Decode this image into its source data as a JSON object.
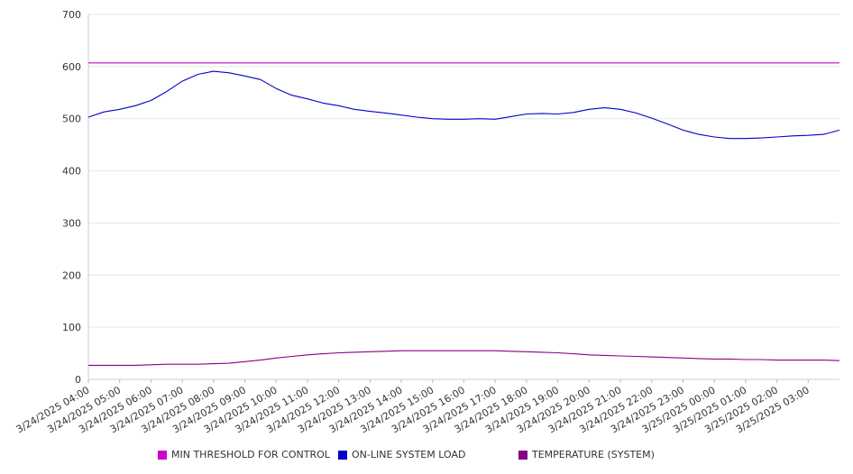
{
  "chart_data": {
    "type": "line",
    "title": "",
    "xlabel": "",
    "ylabel": "",
    "ylim": [
      0,
      700
    ],
    "y_ticks": [
      0,
      100,
      200,
      300,
      400,
      500,
      600,
      700
    ],
    "grid": true,
    "legend_position": "bottom",
    "x_ticks": [
      "3/24/2025 04:00",
      "3/24/2025 05:00",
      "3/24/2025 06:00",
      "3/24/2025 07:00",
      "3/24/2025 08:00",
      "3/24/2025 09:00",
      "3/24/2025 10:00",
      "3/24/2025 11:00",
      "3/24/2025 12:00",
      "3/24/2025 13:00",
      "3/24/2025 14:00",
      "3/24/2025 15:00",
      "3/24/2025 16:00",
      "3/24/2025 17:00",
      "3/24/2025 18:00",
      "3/24/2025 19:00",
      "3/24/2025 20:00",
      "3/24/2025 21:00",
      "3/24/2025 22:00",
      "3/24/2025 23:00",
      "3/25/2025 00:00",
      "3/25/2025 01:00",
      "3/25/2025 02:00",
      "3/25/2025 03:00"
    ],
    "x": [
      "3/24/2025 04:00",
      "3/24/2025 04:30",
      "3/24/2025 05:00",
      "3/24/2025 05:30",
      "3/24/2025 06:00",
      "3/24/2025 06:30",
      "3/24/2025 07:00",
      "3/24/2025 07:30",
      "3/24/2025 08:00",
      "3/24/2025 08:30",
      "3/24/2025 09:00",
      "3/24/2025 09:30",
      "3/24/2025 10:00",
      "3/24/2025 10:30",
      "3/24/2025 11:00",
      "3/24/2025 11:30",
      "3/24/2025 12:00",
      "3/24/2025 12:30",
      "3/24/2025 13:00",
      "3/24/2025 13:30",
      "3/24/2025 14:00",
      "3/24/2025 14:30",
      "3/24/2025 15:00",
      "3/24/2025 15:30",
      "3/24/2025 16:00",
      "3/24/2025 16:30",
      "3/24/2025 17:00",
      "3/24/2025 17:30",
      "3/24/2025 18:00",
      "3/24/2025 18:30",
      "3/24/2025 19:00",
      "3/24/2025 19:30",
      "3/24/2025 20:00",
      "3/24/2025 20:30",
      "3/24/2025 21:00",
      "3/24/2025 21:30",
      "3/24/2025 22:00",
      "3/24/2025 22:30",
      "3/24/2025 23:00",
      "3/24/2025 23:30",
      "3/25/2025 00:00",
      "3/25/2025 00:30",
      "3/25/2025 01:00",
      "3/25/2025 01:30",
      "3/25/2025 02:00",
      "3/25/2025 02:30",
      "3/25/2025 03:00",
      "3/25/2025 03:30",
      "3/25/2025 04:00"
    ],
    "series": [
      {
        "name": "MIN THRESHOLD FOR CONTROL",
        "color": "#cc00cc",
        "values": [
          607,
          607,
          607,
          607,
          607,
          607,
          607,
          607,
          607,
          607,
          607,
          607,
          607,
          607,
          607,
          607,
          607,
          607,
          607,
          607,
          607,
          607,
          607,
          607,
          607,
          607,
          607,
          607,
          607,
          607,
          607,
          607,
          607,
          607,
          607,
          607,
          607,
          607,
          607,
          607,
          607,
          607,
          607,
          607,
          607,
          607,
          607,
          607,
          607
        ]
      },
      {
        "name": "ON-LINE SYSTEM LOAD",
        "color": "#0000cc",
        "values": [
          503,
          513,
          518,
          525,
          535,
          552,
          572,
          585,
          591,
          588,
          582,
          575,
          558,
          545,
          538,
          530,
          525,
          518,
          514,
          511,
          507,
          503,
          500,
          499,
          499,
          500,
          499,
          504,
          509,
          510,
          509,
          512,
          518,
          521,
          518,
          511,
          501,
          490,
          478,
          470,
          465,
          462,
          462,
          463,
          465,
          467,
          468,
          470,
          478
        ]
      },
      {
        "name": "TEMPERATURE (SYSTEM)",
        "color": "#880088",
        "values": [
          27,
          27,
          27,
          27,
          28,
          29,
          29,
          29,
          30,
          31,
          34,
          37,
          41,
          44,
          47,
          49,
          51,
          52,
          53,
          54,
          55,
          55,
          55,
          55,
          55,
          55,
          55,
          54,
          53,
          52,
          51,
          49,
          47,
          46,
          45,
          44,
          43,
          42,
          41,
          40,
          39,
          39,
          38,
          38,
          37,
          37,
          37,
          37,
          36
        ]
      }
    ]
  }
}
